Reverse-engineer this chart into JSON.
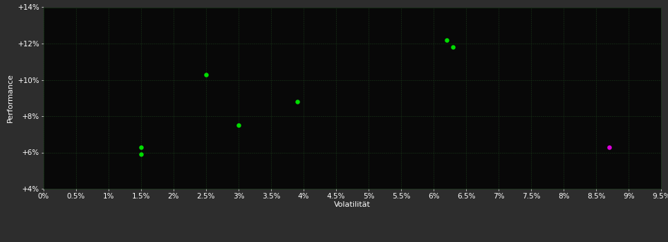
{
  "background_color": "#2d2d2d",
  "plot_bg_color": "#080808",
  "grid_color": "#1a3a1a",
  "text_color": "#ffffff",
  "xlabel": "Volatilität",
  "ylabel": "Performance",
  "xlim": [
    0.0,
    0.095
  ],
  "ylim": [
    0.04,
    0.14
  ],
  "xticks": [
    0.0,
    0.005,
    0.01,
    0.015,
    0.02,
    0.025,
    0.03,
    0.035,
    0.04,
    0.045,
    0.05,
    0.055,
    0.06,
    0.065,
    0.07,
    0.075,
    0.08,
    0.085,
    0.09,
    0.095
  ],
  "yticks": [
    0.04,
    0.06,
    0.08,
    0.1,
    0.12,
    0.14
  ],
  "xtick_labels": [
    "0%",
    "0.5%",
    "1%",
    "1.5%",
    "2%",
    "2.5%",
    "3%",
    "3.5%",
    "4%",
    "4.5%",
    "5%",
    "5.5%",
    "6%",
    "6.5%",
    "7%",
    "7.5%",
    "8%",
    "8.5%",
    "9%",
    "9.5%"
  ],
  "ytick_labels": [
    "+4%",
    "+6%",
    "+8%",
    "+10%",
    "+12%",
    "+14%"
  ],
  "green_points": [
    [
      0.015,
      0.063
    ],
    [
      0.015,
      0.059
    ],
    [
      0.025,
      0.103
    ],
    [
      0.03,
      0.075
    ],
    [
      0.039,
      0.088
    ],
    [
      0.062,
      0.122
    ],
    [
      0.063,
      0.118
    ]
  ],
  "magenta_points": [
    [
      0.087,
      0.063
    ]
  ],
  "green_color": "#00dd00",
  "magenta_color": "#dd00dd",
  "marker_size": 22,
  "grid_linestyle": "--",
  "grid_linewidth": 0.4,
  "grid_alpha": 1.0,
  "xlabel_fontsize": 8,
  "ylabel_fontsize": 8,
  "tick_fontsize": 7.5
}
